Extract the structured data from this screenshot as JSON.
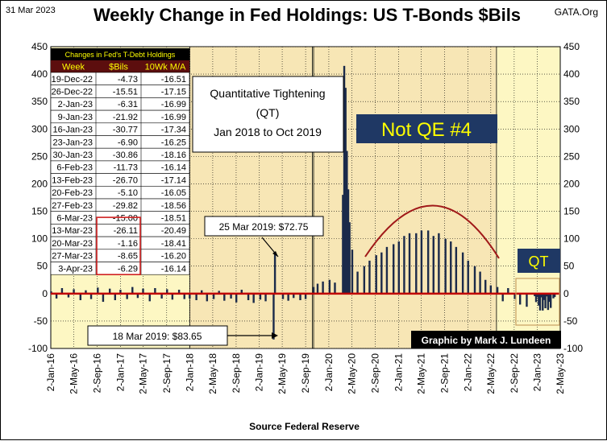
{
  "header": {
    "date": "31 Mar 2023",
    "title": "Weekly Change in Fed Holdings:  US T-Bonds $Bils",
    "source_tag": "GATA.Org"
  },
  "table": {
    "caption": "Changes in Fed's T-Debt Holdings",
    "columns": [
      "Week",
      "$Bils",
      "10Wk M/A"
    ],
    "rows": [
      [
        "19-Dec-22",
        "-4.73",
        "-16.51"
      ],
      [
        "26-Dec-22",
        "-15.51",
        "-17.15"
      ],
      [
        "2-Jan-23",
        "-6.31",
        "-16.99"
      ],
      [
        "9-Jan-23",
        "-21.92",
        "-16.99"
      ],
      [
        "16-Jan-23",
        "-30.77",
        "-17.34"
      ],
      [
        "23-Jan-23",
        "-6.90",
        "-16.25"
      ],
      [
        "30-Jan-23",
        "-30.86",
        "-18.16"
      ],
      [
        "6-Feb-23",
        "-11.73",
        "-16.14"
      ],
      [
        "13-Feb-23",
        "-26.70",
        "-17.14"
      ],
      [
        "20-Feb-23",
        "-5.10",
        "-16.05"
      ],
      [
        "27-Feb-23",
        "-29.82",
        "-18.56"
      ],
      [
        "6-Mar-23",
        "-15.00",
        "-18.51"
      ],
      [
        "13-Mar-23",
        "-26.11",
        "-20.49"
      ],
      [
        "20-Mar-23",
        "-1.16",
        "-18.41"
      ],
      [
        "27-Mar-23",
        "-8.65",
        "-16.20"
      ],
      [
        "3-Apr-23",
        "-6.29",
        "-16.14"
      ]
    ]
  },
  "annotations": {
    "qt_box": [
      "Quantitative Tightening",
      "(QT)",
      "Jan 2018 to Oct 2019"
    ],
    "not_qe": "Not QE #4",
    "qt_label": "QT",
    "note_top": "25 Mar 2019:  $72.75",
    "note_bottom": "18 Mar 2019:  $83.65",
    "credit": "Graphic by Mark J. Lundeen"
  },
  "colors": {
    "plot_bg": "#fdf7c3",
    "highlight_bg": "#f7e6b5",
    "bar": "#1b2a4a",
    "zero_line": "#c00000",
    "arc": "#a01818",
    "label_box": "#1f3864",
    "label_text": "#ffff00",
    "table_header_bg": "#5c0e0e",
    "table_header_text": "#ffff00",
    "outline_red": "#d02020",
    "qt_outline": "#c8a060"
  },
  "chart_data": {
    "type": "bar",
    "title": "Weekly Change in Fed Holdings:  US T-Bonds $Bils",
    "xlabel": "Source  Federal Reserve",
    "ylabel": "",
    "ylim": [
      -100,
      450
    ],
    "yticks": [
      -100,
      -50,
      0,
      50,
      100,
      150,
      200,
      250,
      300,
      350,
      400,
      450
    ],
    "xlim": [
      "2016-01-02",
      "2023-05-02"
    ],
    "xticks": [
      "2-Jan-16",
      "2-May-16",
      "2-Sep-16",
      "2-Jan-17",
      "2-May-17",
      "2-Sep-17",
      "2-Jan-18",
      "2-May-18",
      "2-Sep-18",
      "2-Jan-19",
      "2-May-19",
      "2-Sep-19",
      "2-Jan-20",
      "2-May-20",
      "2-Sep-20",
      "2-Jan-21",
      "2-May-21",
      "2-Sep-21",
      "2-Jan-22",
      "2-May-22",
      "2-Sep-22",
      "2-Jan-23",
      "2-May-23"
    ],
    "grid": true,
    "shaded_periods": [
      {
        "start": "2018-01-01",
        "end": "2019-10-07",
        "label": "Quantitative Tightening (QT)"
      },
      {
        "start": "2019-10-14",
        "end": "2022-06-01",
        "label": "Not QE #4"
      }
    ],
    "series": [
      {
        "values": [
          {
            "x": "2016-01-04",
            "y": 4
          },
          {
            "x": "2016-02-01",
            "y": -9
          },
          {
            "x": "2016-03-01",
            "y": 10
          },
          {
            "x": "2016-04-04",
            "y": -7
          },
          {
            "x": "2016-05-02",
            "y": 8
          },
          {
            "x": "2016-06-06",
            "y": -12
          },
          {
            "x": "2016-07-04",
            "y": 6
          },
          {
            "x": "2016-08-01",
            "y": -10
          },
          {
            "x": "2016-09-05",
            "y": 11
          },
          {
            "x": "2016-10-03",
            "y": -15
          },
          {
            "x": "2016-11-07",
            "y": 9
          },
          {
            "x": "2016-12-05",
            "y": -12
          },
          {
            "x": "2017-01-02",
            "y": 7
          },
          {
            "x": "2017-02-06",
            "y": -10
          },
          {
            "x": "2017-03-06",
            "y": 12
          },
          {
            "x": "2017-04-03",
            "y": -8
          },
          {
            "x": "2017-05-01",
            "y": 9
          },
          {
            "x": "2017-06-05",
            "y": -14
          },
          {
            "x": "2017-07-03",
            "y": 10
          },
          {
            "x": "2017-08-07",
            "y": -9
          },
          {
            "x": "2017-09-04",
            "y": 8
          },
          {
            "x": "2017-10-02",
            "y": -11
          },
          {
            "x": "2017-11-06",
            "y": 7
          },
          {
            "x": "2017-12-04",
            "y": -10
          },
          {
            "x": "2018-01-01",
            "y": -9
          },
          {
            "x": "2018-02-05",
            "y": -12
          },
          {
            "x": "2018-03-05",
            "y": 6
          },
          {
            "x": "2018-04-02",
            "y": -14
          },
          {
            "x": "2018-05-07",
            "y": -10
          },
          {
            "x": "2018-06-04",
            "y": 5
          },
          {
            "x": "2018-07-02",
            "y": -13
          },
          {
            "x": "2018-08-06",
            "y": -9
          },
          {
            "x": "2018-09-03",
            "y": -16
          },
          {
            "x": "2018-10-01",
            "y": 7
          },
          {
            "x": "2018-11-05",
            "y": -12
          },
          {
            "x": "2018-12-03",
            "y": -17
          },
          {
            "x": "2019-01-07",
            "y": -11
          },
          {
            "x": "2019-02-04",
            "y": -14
          },
          {
            "x": "2019-03-18",
            "y": -83.65
          },
          {
            "x": "2019-03-25",
            "y": 72.75
          },
          {
            "x": "2019-05-06",
            "y": -10
          },
          {
            "x": "2019-06-03",
            "y": -13
          },
          {
            "x": "2019-07-01",
            "y": -8
          },
          {
            "x": "2019-08-05",
            "y": -12
          },
          {
            "x": "2019-09-02",
            "y": -10
          },
          {
            "x": "2019-10-14",
            "y": 12
          },
          {
            "x": "2019-11-04",
            "y": 18
          },
          {
            "x": "2019-12-02",
            "y": 22
          },
          {
            "x": "2020-01-06",
            "y": 25
          },
          {
            "x": "2020-02-03",
            "y": 20
          },
          {
            "x": "2020-03-16",
            "y": 180
          },
          {
            "x": "2020-03-23",
            "y": 415
          },
          {
            "x": "2020-03-30",
            "y": 375
          },
          {
            "x": "2020-04-06",
            "y": 260
          },
          {
            "x": "2020-04-13",
            "y": 190
          },
          {
            "x": "2020-04-20",
            "y": 130
          },
          {
            "x": "2020-05-04",
            "y": 80
          },
          {
            "x": "2020-06-01",
            "y": 40
          },
          {
            "x": "2020-07-06",
            "y": 50
          },
          {
            "x": "2020-08-03",
            "y": 60
          },
          {
            "x": "2020-09-07",
            "y": 70
          },
          {
            "x": "2020-10-05",
            "y": 75
          },
          {
            "x": "2020-11-02",
            "y": 85
          },
          {
            "x": "2020-12-07",
            "y": 90
          },
          {
            "x": "2021-01-04",
            "y": 95
          },
          {
            "x": "2021-02-01",
            "y": 105
          },
          {
            "x": "2021-03-01",
            "y": 110
          },
          {
            "x": "2021-04-05",
            "y": 110
          },
          {
            "x": "2021-05-03",
            "y": 115
          },
          {
            "x": "2021-06-07",
            "y": 115
          },
          {
            "x": "2021-07-05",
            "y": 105
          },
          {
            "x": "2021-08-02",
            "y": 110
          },
          {
            "x": "2021-09-06",
            "y": 100
          },
          {
            "x": "2021-10-04",
            "y": 95
          },
          {
            "x": "2021-11-01",
            "y": 85
          },
          {
            "x": "2021-12-06",
            "y": 75
          },
          {
            "x": "2022-01-03",
            "y": 60
          },
          {
            "x": "2022-02-07",
            "y": 50
          },
          {
            "x": "2022-03-07",
            "y": 40
          },
          {
            "x": "2022-04-04",
            "y": 25
          },
          {
            "x": "2022-05-02",
            "y": 15
          },
          {
            "x": "2022-06-06",
            "y": 12
          },
          {
            "x": "2022-07-04",
            "y": -14
          },
          {
            "x": "2022-08-01",
            "y": 10
          },
          {
            "x": "2022-09-05",
            "y": -10
          },
          {
            "x": "2022-10-03",
            "y": -20
          },
          {
            "x": "2022-11-07",
            "y": -24
          },
          {
            "x": "2022-12-19",
            "y": -4.73
          },
          {
            "x": "2022-12-26",
            "y": -15.51
          },
          {
            "x": "2023-01-02",
            "y": -6.31
          },
          {
            "x": "2023-01-09",
            "y": -21.92
          },
          {
            "x": "2023-01-16",
            "y": -30.77
          },
          {
            "x": "2023-01-23",
            "y": -6.9
          },
          {
            "x": "2023-01-30",
            "y": -30.86
          },
          {
            "x": "2023-02-06",
            "y": -11.73
          },
          {
            "x": "2023-02-13",
            "y": -26.7
          },
          {
            "x": "2023-02-20",
            "y": -5.1
          },
          {
            "x": "2023-02-27",
            "y": -29.82
          },
          {
            "x": "2023-03-06",
            "y": -15.0
          },
          {
            "x": "2023-03-13",
            "y": -26.11
          },
          {
            "x": "2023-03-20",
            "y": -1.16
          },
          {
            "x": "2023-03-27",
            "y": -8.65
          },
          {
            "x": "2023-04-03",
            "y": -6.29
          }
        ]
      }
    ]
  }
}
